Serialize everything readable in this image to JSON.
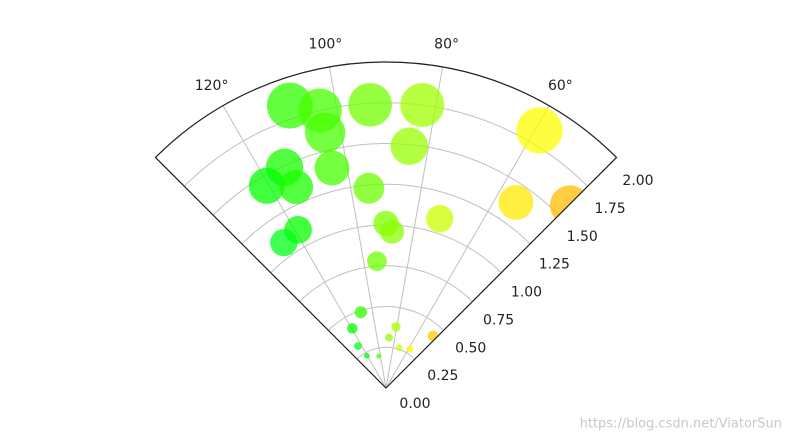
{
  "chart_data": {
    "type": "polar_scatter",
    "theta": [
      108.8,
      103.4,
      103.4,
      93.2,
      82.7,
      59.2,
      84.5,
      114.7,
      103.8,
      120.5,
      114.1,
      94.9,
      55.0,
      72.4,
      90,
      87.8,
      119.1,
      125.1,
      94.1,
      44.8,
      108.4,
      119.5,
      80.7,
      86.6,
      47.9,
      123.7,
      58.4,
      72,
      120.7,
      102.7
    ],
    "r": [
      1.83,
      1.75,
      1.61,
      1.74,
      1.75,
      1.84,
      1.49,
      1.49,
      1.39,
      1.44,
      1.35,
      1.23,
      1.39,
      1.09,
      1.01,
      0.96,
      1.11,
      1.09,
      0.78,
      1.59,
      0.49,
      0.42,
      0.38,
      0.31,
      0.43,
      0.31,
      0.28,
      0.26,
      0.23,
      0.2
    ],
    "colormap": "hsv",
    "alpha": 0.75,
    "thetalim": [
      45,
      135
    ],
    "xticks": [
      {
        "value": 60,
        "label": "60°"
      },
      {
        "value": 80,
        "label": "80°"
      },
      {
        "value": 100,
        "label": "100°"
      },
      {
        "value": 120,
        "label": "120°"
      }
    ],
    "ylim": [
      0,
      2
    ],
    "yticks": [
      {
        "value": 0,
        "label": "0.00"
      },
      {
        "value": 0.25,
        "label": "0.25"
      },
      {
        "value": 0.5,
        "label": "0.50"
      },
      {
        "value": 0.75,
        "label": "0.75"
      },
      {
        "value": 1,
        "label": "1.00"
      },
      {
        "value": 1.25,
        "label": "1.25"
      },
      {
        "value": 1.5,
        "label": "1.50"
      },
      {
        "value": 1.75,
        "label": "1.75"
      },
      {
        "value": 2,
        "label": "2.00"
      }
    ],
    "grid": true,
    "watermark": "https://blog.csdn.net/ViatorSun"
  }
}
